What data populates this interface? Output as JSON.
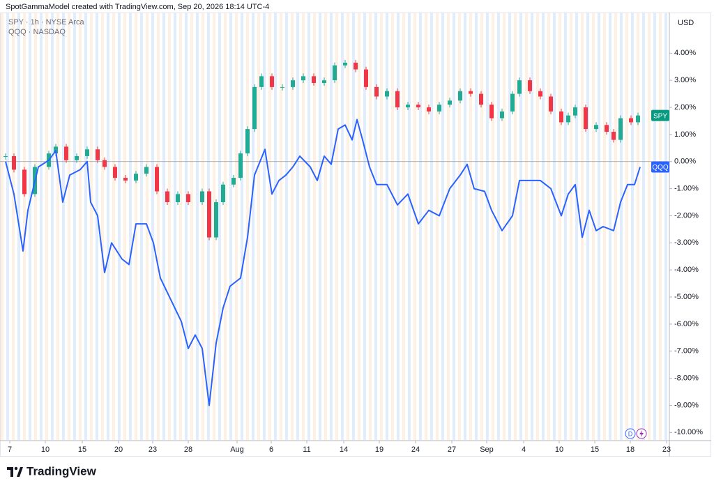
{
  "header": "SpotGammaModel created with TradingView.com, Sep 20, 2026 18:14 UTC-4",
  "legend": [
    "SPY · 1h · NYSE Arca",
    "QQQ · NASDAQ"
  ],
  "currency": "USD",
  "badge": "D",
  "brand": "TradingView",
  "chart_data": {
    "type": "line",
    "xlim": [
      0,
      240
    ],
    "ylim": [
      -10.3,
      5.5
    ],
    "xticks": [
      {
        "value": 3.5,
        "label": "7"
      },
      {
        "value": 16.25,
        "label": "10"
      },
      {
        "value": 29.5,
        "label": "15"
      },
      {
        "value": 42.5,
        "label": "20"
      },
      {
        "value": 54.75,
        "label": "23"
      },
      {
        "value": 67.5,
        "label": "28"
      },
      {
        "value": 85,
        "label": "Aug"
      },
      {
        "value": 97.25,
        "label": "6"
      },
      {
        "value": 110,
        "label": "11"
      },
      {
        "value": 123.25,
        "label": "14"
      },
      {
        "value": 136,
        "label": "19"
      },
      {
        "value": 149,
        "label": "24"
      },
      {
        "value": 162,
        "label": "27"
      },
      {
        "value": 174.5,
        "label": "Sep"
      },
      {
        "value": 187.75,
        "label": "4"
      },
      {
        "value": 200.5,
        "label": "10"
      },
      {
        "value": 213.25,
        "label": "15"
      },
      {
        "value": 226,
        "label": "18"
      },
      {
        "value": 239,
        "label": "23"
      }
    ],
    "yticks": [
      {
        "value": 4,
        "label": "4.00%"
      },
      {
        "value": 3,
        "label": "3.00%"
      },
      {
        "value": 2,
        "label": "2.00%"
      },
      {
        "value": 1,
        "label": "1.00%"
      },
      {
        "value": 0,
        "label": "0.00%"
      },
      {
        "value": -1,
        "label": "-1.00%"
      },
      {
        "value": -2,
        "label": "-2.00%"
      },
      {
        "value": -3,
        "label": "-3.00%"
      },
      {
        "value": -4,
        "label": "-4.00%"
      },
      {
        "value": -5,
        "label": "-5.00%"
      },
      {
        "value": -6,
        "label": "-6.00%"
      },
      {
        "value": -7,
        "label": "-7.00%"
      },
      {
        "value": -8,
        "label": "-8.00%"
      },
      {
        "value": -9,
        "label": "-9.00%"
      },
      {
        "value": -10,
        "label": "-10.00%"
      }
    ],
    "series": [
      {
        "name": "SPY",
        "type": "candlestick",
        "color": "#089981",
        "up_color": "#22ab94",
        "down_color": "#f23645",
        "x": [
          2,
          5,
          8.75,
          12.5,
          17.5,
          20,
          23.75,
          27.5,
          31.25,
          35,
          37.5,
          41.25,
          45,
          48.75,
          52.5,
          56.25,
          60,
          63.75,
          67.5,
          72.5,
          75,
          77.5,
          80,
          83.75,
          86.25,
          88.75,
          91.25,
          93.75,
          97.5,
          101.25,
          105,
          108.75,
          112.5,
          116.25,
          120,
          123.75,
          127.5,
          131.25,
          135,
          138.75,
          142.5,
          146.25,
          150,
          153.75,
          157.5,
          161.25,
          165,
          168.75,
          172.5,
          176.25,
          180,
          183.75,
          186.25,
          190,
          193.75,
          197.5,
          201.25,
          203.75,
          206.25,
          210,
          213.75,
          217.5,
          220,
          222.5,
          226.25,
          228.75
        ],
        "values": [
          0.2,
          -0.3,
          -1.2,
          -0.2,
          0.3,
          0.55,
          0.05,
          0.2,
          0.45,
          0.05,
          -0.2,
          -0.6,
          -0.7,
          -0.45,
          -0.2,
          -1.1,
          -1.5,
          -1.2,
          -1.5,
          -1.1,
          -2.8,
          -1.5,
          -0.85,
          -0.6,
          0.3,
          1.2,
          2.75,
          3.15,
          2.75,
          2.75,
          3.0,
          3.15,
          2.9,
          3.0,
          3.55,
          3.65,
          3.4,
          2.75,
          2.4,
          2.6,
          2.0,
          2.1,
          2.0,
          1.85,
          2.1,
          2.25,
          2.6,
          2.5,
          2.1,
          1.6,
          1.85,
          2.5,
          3.0,
          2.6,
          2.4,
          1.85,
          1.45,
          1.7,
          2.0,
          1.2,
          1.35,
          1.1,
          0.8,
          1.6,
          1.45,
          1.7
        ]
      },
      {
        "name": "QQQ",
        "type": "line",
        "color": "#2962ff",
        "x": [
          2,
          5,
          8.25,
          10,
          13.75,
          17.5,
          20,
          22.5,
          25,
          28.75,
          31.25,
          32.5,
          35,
          37.5,
          40,
          43.75,
          46.25,
          48.75,
          52.5,
          55,
          57.5,
          61.25,
          65,
          67.5,
          70,
          72.5,
          75,
          77.5,
          80,
          82.5,
          86.25,
          88.75,
          91.25,
          95,
          97.5,
          100,
          102.5,
          105,
          107.5,
          111.25,
          113.75,
          116.25,
          118.75,
          121.25,
          123.75,
          126.25,
          128,
          130,
          132.5,
          135,
          138.75,
          142.5,
          146.25,
          150,
          153.75,
          157.5,
          161.25,
          165,
          167.5,
          170,
          173.75,
          176.25,
          180,
          183.75,
          186.25,
          190,
          193.75,
          197.5,
          201.25,
          203.75,
          206.25,
          208.75,
          211.25,
          213.75,
          216.25,
          220,
          222.5,
          225,
          227.5,
          229.5
        ],
        "values": [
          0,
          -1.2,
          -3.3,
          -1.8,
          -0.2,
          0.05,
          0.4,
          -1.5,
          -0.5,
          -0.3,
          0,
          -1.5,
          -2,
          -4.1,
          -3,
          -3.6,
          -3.8,
          -2.3,
          -2.3,
          -3,
          -4.3,
          -5.1,
          -5.9,
          -6.9,
          -6.4,
          -6.9,
          -9,
          -6.7,
          -5.4,
          -4.6,
          -4.3,
          -2.8,
          -0.5,
          0.45,
          -1.2,
          -0.7,
          -0.5,
          -0.2,
          0.2,
          -0.2,
          -0.7,
          0.2,
          -0.1,
          1.2,
          1.35,
          0.8,
          1.55,
          0.8,
          -0.2,
          -0.85,
          -0.85,
          -1.6,
          -1.2,
          -2.3,
          -1.8,
          -2,
          -1,
          -0.5,
          -0.1,
          -1,
          -1.1,
          -1.8,
          -2.55,
          -2,
          -0.7,
          -0.7,
          -0.7,
          -1,
          -2,
          -1.2,
          -0.85,
          -2.8,
          -1.8,
          -2.55,
          -2.4,
          -2.55,
          -1.5,
          -0.85,
          -0.85,
          -0.2
        ]
      }
    ]
  }
}
